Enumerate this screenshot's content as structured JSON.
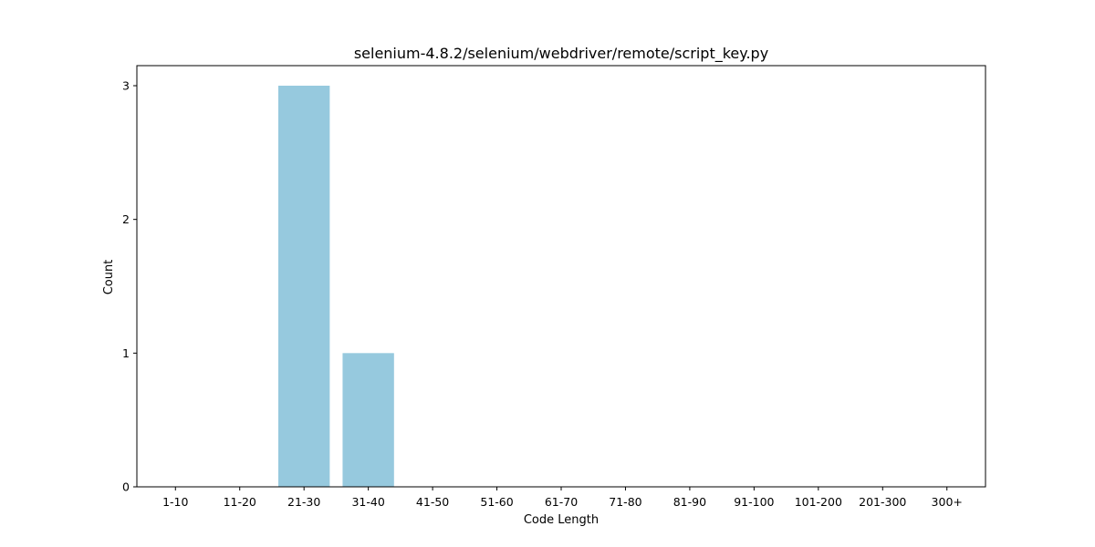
{
  "chart_data": {
    "type": "bar",
    "title": "selenium-4.8.2/selenium/webdriver/remote/script_key.py",
    "xlabel": "Code Length",
    "ylabel": "Count",
    "categories": [
      "1-10",
      "11-20",
      "21-30",
      "31-40",
      "41-50",
      "51-60",
      "61-70",
      "71-80",
      "81-90",
      "91-100",
      "101-200",
      "201-300",
      "300+"
    ],
    "values": [
      0,
      0,
      3,
      1,
      0,
      0,
      0,
      0,
      0,
      0,
      0,
      0,
      0
    ],
    "ylim": [
      0,
      3.15
    ],
    "yticks": [
      0,
      1,
      2,
      3
    ],
    "grid": false,
    "bar_color": "#96c9de"
  }
}
